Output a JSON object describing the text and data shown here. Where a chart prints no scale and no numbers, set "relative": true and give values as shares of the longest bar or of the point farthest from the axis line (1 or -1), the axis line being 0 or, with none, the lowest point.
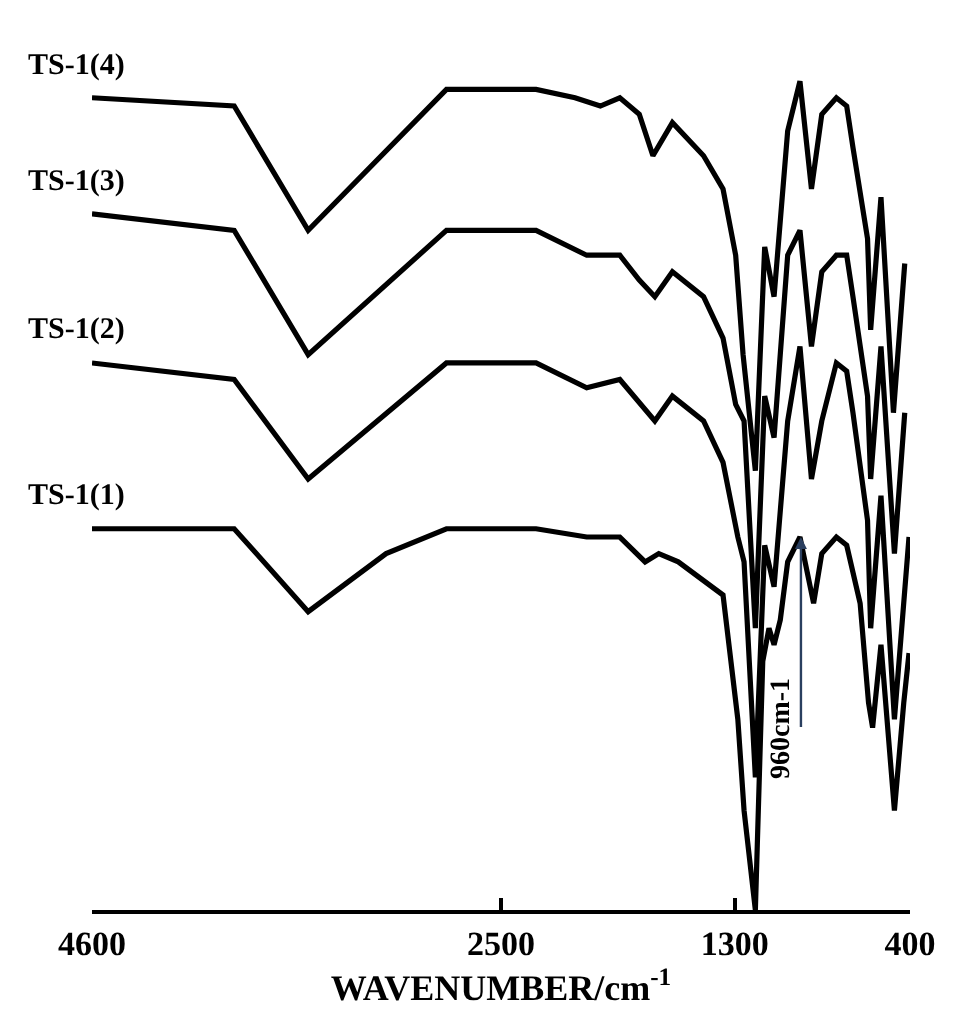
{
  "chart_data": {
    "type": "line",
    "relative": true,
    "xlabel": "WAVENUMBER/cm$^{-1}$",
    "xlim": [
      4600,
      400
    ],
    "xticks": [
      4600,
      2500,
      1300,
      400
    ],
    "grid": false,
    "legend": false,
    "marker": "none",
    "line_style": "solid",
    "tick_labels": "x",
    "annotations": [
      {
        "text": "960cm-1",
        "x": 960,
        "y": 0.45
      }
    ],
    "series": [
      {
        "name": "TS-1(4)",
        "color": "#000000",
        "x": [
          4600,
          3870,
          3490,
          2780,
          2320,
          2120,
          1990,
          1890,
          1790,
          1720,
          1620,
          1460,
          1360,
          1295,
          1257,
          1194,
          1146,
          1098,
          1028,
          965,
          906,
          853,
          778,
          725,
          693,
          618,
          602,
          549,
          485,
          427
        ],
        "values": [
          0.98,
          0.97,
          0.82,
          0.99,
          0.99,
          0.98,
          0.97,
          0.98,
          0.96,
          0.91,
          0.95,
          0.91,
          0.87,
          0.79,
          0.67,
          0.53,
          0.8,
          0.74,
          0.94,
          1.0,
          0.87,
          0.96,
          0.98,
          0.97,
          0.92,
          0.81,
          0.7,
          0.86,
          0.6,
          0.78
        ]
      },
      {
        "name": "TS-1(3)",
        "color": "#000000",
        "x": [
          4600,
          3870,
          3490,
          2780,
          2320,
          2060,
          1890,
          1790,
          1710,
          1620,
          1460,
          1360,
          1295,
          1252,
          1194,
          1146,
          1098,
          1028,
          965,
          906,
          853,
          778,
          725,
          693,
          618,
          602,
          549,
          480,
          427
        ],
        "values": [
          0.84,
          0.82,
          0.67,
          0.82,
          0.82,
          0.79,
          0.79,
          0.76,
          0.74,
          0.77,
          0.74,
          0.69,
          0.61,
          0.59,
          0.34,
          0.62,
          0.57,
          0.79,
          0.82,
          0.68,
          0.77,
          0.79,
          0.79,
          0.74,
          0.62,
          0.52,
          0.68,
          0.43,
          0.6
        ]
      },
      {
        "name": "TS-1(2)",
        "color": "#000000",
        "x": [
          4600,
          3870,
          3490,
          2780,
          2320,
          2060,
          1890,
          1710,
          1620,
          1460,
          1360,
          1284,
          1252,
          1194,
          1146,
          1098,
          1028,
          965,
          906,
          853,
          778,
          725,
          693,
          618,
          602,
          549,
          480,
          405
        ],
        "values": [
          0.66,
          0.64,
          0.52,
          0.66,
          0.66,
          0.63,
          0.64,
          0.59,
          0.62,
          0.59,
          0.54,
          0.45,
          0.42,
          0.16,
          0.44,
          0.39,
          0.59,
          0.68,
          0.52,
          0.59,
          0.66,
          0.65,
          0.6,
          0.47,
          0.34,
          0.5,
          0.23,
          0.45
        ]
      },
      {
        "name": "TS-1(1)",
        "color": "#000000",
        "x": [
          4600,
          3870,
          3490,
          3090,
          2780,
          2320,
          2060,
          1890,
          1760,
          1690,
          1590,
          1360,
          1284,
          1252,
          1194,
          1156,
          1124,
          1098,
          1066,
          1028,
          965,
          895,
          853,
          778,
          725,
          656,
          613,
          592,
          549,
          480,
          432,
          405
        ],
        "values": [
          0.46,
          0.46,
          0.36,
          0.43,
          0.46,
          0.46,
          0.45,
          0.45,
          0.42,
          0.43,
          0.42,
          0.38,
          0.23,
          0.12,
          0.0,
          0.3,
          0.34,
          0.32,
          0.35,
          0.42,
          0.45,
          0.37,
          0.43,
          0.45,
          0.44,
          0.37,
          0.25,
          0.22,
          0.32,
          0.12,
          0.25,
          0.31
        ]
      }
    ]
  }
}
